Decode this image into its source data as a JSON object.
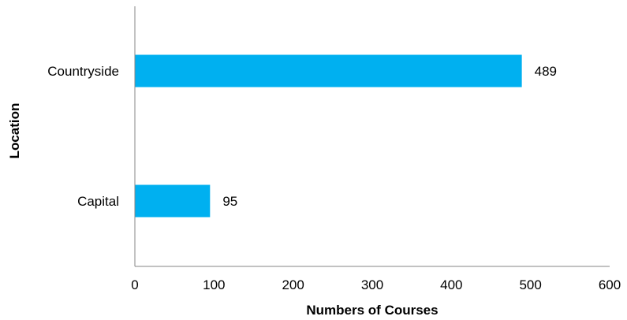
{
  "chart_data": {
    "type": "bar",
    "orientation": "horizontal",
    "categories": [
      "Countryside",
      "Capital"
    ],
    "values": [
      489,
      95
    ],
    "data_labels": [
      "489",
      "95"
    ],
    "xlabel": "Numbers of Courses",
    "ylabel": "Location",
    "xlim": [
      0,
      600
    ],
    "xticks": [
      0,
      100,
      200,
      300,
      400,
      500,
      600
    ],
    "xtick_labels": [
      "0",
      "100",
      "200",
      "300",
      "400",
      "500",
      "600"
    ],
    "grid": false,
    "legend": "none",
    "colors": {
      "bar": "#00B0F0",
      "axis": "#868686",
      "text": "#000000"
    }
  }
}
